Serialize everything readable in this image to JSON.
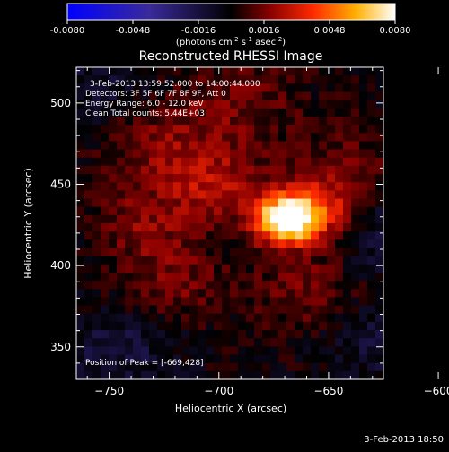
{
  "chart_data": {
    "type": "heatmap",
    "title": "Reconstructed RHESSI Image",
    "xlabel": "Heliocentric X (arcsec)",
    "ylabel": "Heliocentric Y (arcsec)",
    "xlim": [
      -765,
      -625
    ],
    "ylim": [
      330,
      522
    ],
    "x_ticks": [
      -750,
      -700,
      -650,
      -600
    ],
    "y_ticks": [
      350,
      400,
      450,
      500
    ],
    "colorbar": {
      "label_parts": [
        "(photons cm",
        "-2",
        " s",
        "-1",
        " asec",
        "-2",
        ")"
      ],
      "range": [
        -0.008,
        0.008
      ],
      "ticks": [
        -0.008,
        -0.0048,
        -0.0016,
        0.0016,
        0.0048,
        0.008
      ],
      "tick_labels": [
        "-0.0080",
        "-0.0048",
        "-0.0016",
        "0.0016",
        "0.0048",
        "0.0080"
      ]
    },
    "info_lines": [
      "3-Feb-2013 13:59:52.000 to 14:00:44.000",
      "Detectors: 3F 5F 6F 7F 8F 9F, Att 0",
      "Energy Range: 6.0 - 12.0 keV",
      "Clean     Total counts: 5.44E+03"
    ],
    "peak_label": "Position of Peak = [-669,428]",
    "peak": {
      "x": -669,
      "y": 428,
      "value": 0.008
    },
    "sources": [
      {
        "x": -669,
        "y": 428,
        "amp": 0.0085,
        "sigma": 10
      },
      {
        "x": -655,
        "y": 435,
        "amp": 0.003,
        "sigma": 14
      },
      {
        "x": -700,
        "y": 448,
        "amp": 0.0022,
        "sigma": 16
      },
      {
        "x": -725,
        "y": 470,
        "amp": 0.0018,
        "sigma": 18
      },
      {
        "x": -735,
        "y": 425,
        "amp": 0.0016,
        "sigma": 16
      },
      {
        "x": -720,
        "y": 390,
        "amp": 0.0015,
        "sigma": 18
      },
      {
        "x": -660,
        "y": 385,
        "amp": 0.0017,
        "sigma": 16
      },
      {
        "x": -640,
        "y": 460,
        "amp": 0.0012,
        "sigma": 18
      },
      {
        "x": -690,
        "y": 500,
        "amp": 0.0014,
        "sigma": 20
      },
      {
        "x": -620,
        "y": 420,
        "amp": -0.0016,
        "sigma": 18
      },
      {
        "x": -745,
        "y": 350,
        "amp": -0.0014,
        "sigma": 18
      },
      {
        "x": -625,
        "y": 355,
        "amp": -0.0012,
        "sigma": 18
      },
      {
        "x": -755,
        "y": 510,
        "amp": -0.001,
        "sigma": 16
      }
    ]
  },
  "footer_date": "3-Feb-2013 18:50"
}
